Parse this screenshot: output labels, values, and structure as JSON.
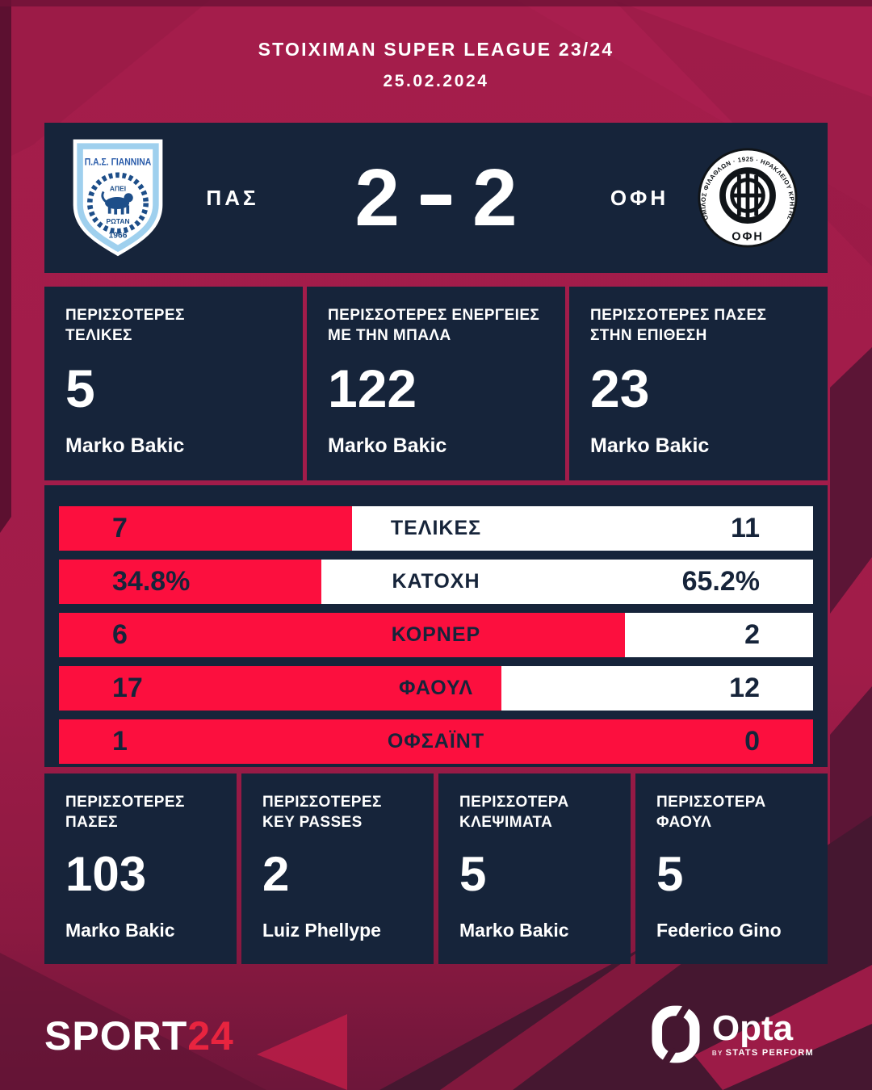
{
  "colors": {
    "background_crimson": "#a21c4a",
    "panel_navy": "#16243a",
    "bar_red": "#fc0f3e",
    "bar_white": "#ffffff",
    "accent_red": "#e8243f",
    "plum_dark": "#451730"
  },
  "header": {
    "league": "STOIXIMAN SUPER LEAGUE 23/24",
    "date": "25.02.2024"
  },
  "scoreboard": {
    "home_code": "ΠΑΣ",
    "away_code": "ΟΦΗ",
    "home_score": "2",
    "away_score": "2",
    "home_logo": {
      "title": "Π.Α.Σ. ΓΙΑΝΝΙΝΑ",
      "motto_top": "ΑΠΕΙ",
      "motto_bottom": "ΡΩΤΑΝ",
      "year": "1966"
    },
    "away_logo": {
      "ring_text": "ΟΜΙΛΟΣ ΦΙΛΑΘΛΩΝ · 1925 · ΗΡΑΚΛΕΙΟΥ ΚΡΗΤΗΣ",
      "code": "ΟΦΗ"
    }
  },
  "top_cards": [
    {
      "label_line1": "ΠΕΡΙΣΣΟΤΕΡΕΣ",
      "label_line2": "ΤΕΛΙΚΕΣ",
      "value": "5",
      "player": "Marko Bakic"
    },
    {
      "label_line1": "ΠΕΡΙΣΣΟΤΕΡΕΣ ΕΝΕΡΓΕΙΕΣ",
      "label_line2": "ΜΕ ΤΗΝ ΜΠΑΛΑ",
      "value": "122",
      "player": "Marko Bakic"
    },
    {
      "label_line1": "ΠΕΡΙΣΣΟΤΕΡΕΣ ΠΑΣΕΣ",
      "label_line2": "ΣΤΗΝ ΕΠΙΘΕΣΗ",
      "value": "23",
      "player": "Marko Bakic"
    }
  ],
  "comparison_rows": [
    {
      "label": "ΤΕΛΙΚΕΣ",
      "home_display": "7",
      "away_display": "11",
      "home_value": 7,
      "away_value": 11
    },
    {
      "label": "ΚΑΤΟΧΗ",
      "home_display": "34.8%",
      "away_display": "65.2%",
      "home_value": 34.8,
      "away_value": 65.2
    },
    {
      "label": "ΚΟΡΝΕΡ",
      "home_display": "6",
      "away_display": "2",
      "home_value": 6,
      "away_value": 2
    },
    {
      "label": "ΦΑΟΥΛ",
      "home_display": "17",
      "away_display": "12",
      "home_value": 17,
      "away_value": 12
    },
    {
      "label": "ΟΦΣΑΪΝΤ",
      "home_display": "1",
      "away_display": "0",
      "home_value": 1,
      "away_value": 0
    }
  ],
  "bottom_cards": [
    {
      "label_line1": "ΠΕΡΙΣΣΟΤΕΡΕΣ",
      "label_line2": "ΠΑΣΕΣ",
      "value": "103",
      "player": "Marko Bakic"
    },
    {
      "label_line1": "ΠΕΡΙΣΣΟΤΕΡΕΣ",
      "label_line2": "KEY PASSES",
      "value": "2",
      "player": "Luiz Phellype"
    },
    {
      "label_line1": "ΠΕΡΙΣΣΟΤΕΡΑ",
      "label_line2": "ΚΛΕΨΙΜΑΤΑ",
      "value": "5",
      "player": "Marko Bakic"
    },
    {
      "label_line1": "ΠΕΡΙΣΣΟΤΕΡΑ",
      "label_line2": "ΦΑΟΥΛ",
      "value": "5",
      "player": "Federico Gino"
    }
  ],
  "footer": {
    "sport24_white": "SPORT",
    "sport24_red": "24",
    "opta_name": "Opta",
    "opta_byline_by": "BY",
    "opta_byline_rest": "STATS PERFORM"
  },
  "chart_data": {
    "type": "bar",
    "orientation": "horizontal-split",
    "title": "ΠΑΣ 2 - 2 ΟΦΗ",
    "categories": [
      "ΤΕΛΙΚΕΣ",
      "ΚΑΤΟΧΗ",
      "ΚΟΡΝΕΡ",
      "ΦΑΟΥΛ",
      "ΟΦΣΑΪΝΤ"
    ],
    "series": [
      {
        "name": "ΠΑΣ",
        "values": [
          7,
          34.8,
          6,
          17,
          1
        ],
        "color": "#fc0f3e"
      },
      {
        "name": "ΟΦΗ",
        "values": [
          11,
          65.2,
          2,
          12,
          0
        ],
        "color": "#ffffff"
      }
    ],
    "note": "each row: red segment width proportional to home/(home+away)"
  }
}
